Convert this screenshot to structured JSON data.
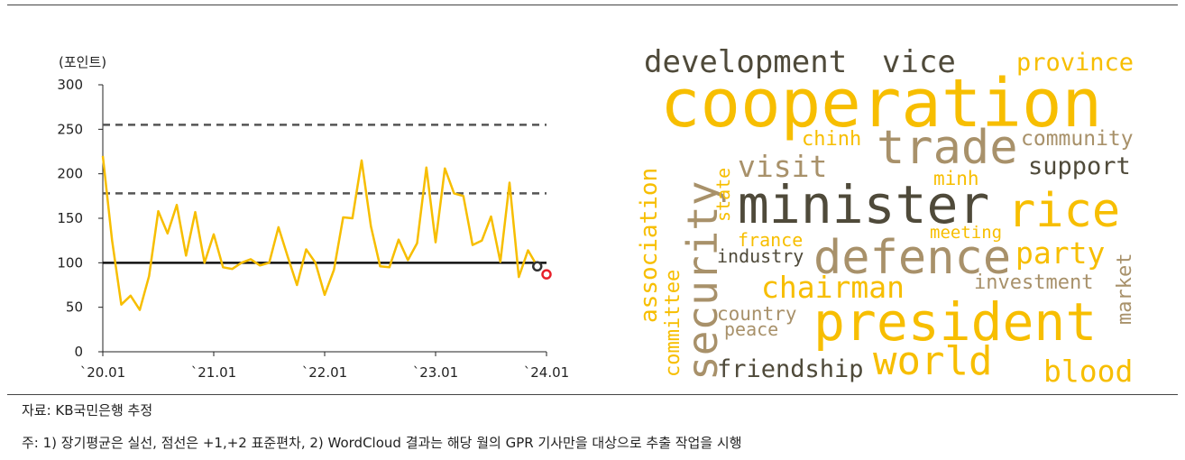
{
  "source": "자료: KB국민은행 추정",
  "footnote": "주: 1) 장기평균은 실선, 점선은 +1,+2 표준편차, 2) WordCloud 결과는 해당 월의 GPR 기사만을 대상으로 추출 작업을 시행",
  "chart_data": {
    "type": "line",
    "ylabel": "(포인트)",
    "xlabel": "",
    "ylim": [
      0,
      300
    ],
    "yticks": [
      0,
      50,
      100,
      150,
      200,
      250,
      300
    ],
    "xtick_labels": [
      "`20.01",
      "`21.01",
      "`22.01",
      "`23.01",
      "`24.01"
    ],
    "x_start": "2020-01",
    "x_end": "2024-01",
    "series": [
      {
        "values": [
          220,
          125,
          53,
          63,
          47,
          85,
          158,
          133,
          165,
          108,
          157,
          100,
          132,
          95,
          93,
          100,
          104,
          97,
          100,
          140,
          107,
          75,
          115,
          100,
          64,
          92,
          151,
          150,
          215,
          141,
          96,
          95,
          126,
          103,
          122,
          207,
          123,
          206,
          178,
          175,
          120,
          125,
          152,
          101,
          190,
          84,
          114,
          96
        ],
        "color": "#F7BE00",
        "marker_last": "#333333"
      }
    ],
    "reference_lines": [
      {
        "value": 100,
        "style": "solid",
        "color": "#111111"
      },
      {
        "value": 178,
        "style": "dashed",
        "color": "#555555"
      },
      {
        "value": 255,
        "style": "dashed",
        "color": "#555555"
      }
    ],
    "extra_point": {
      "x": "2024-01",
      "value": 87,
      "color": "#E8212B"
    }
  },
  "wordcloud": [
    {
      "text": "development",
      "color": "#4F4A3A"
    },
    {
      "text": "vice",
      "color": "#4F4A3A"
    },
    {
      "text": "province",
      "color": "#F7BE00"
    },
    {
      "text": "cooperation",
      "color": "#F7BE00"
    },
    {
      "text": "trade",
      "color": "#A8916A"
    },
    {
      "text": "chinh",
      "color": "#F7BE00"
    },
    {
      "text": "community",
      "color": "#A8916A"
    },
    {
      "text": "visit",
      "color": "#A8916A"
    },
    {
      "text": "support",
      "color": "#4F4A3A"
    },
    {
      "text": "minh",
      "color": "#F7BE00"
    },
    {
      "text": "minister",
      "color": "#4F4A3A"
    },
    {
      "text": "rice",
      "color": "#F7BE00"
    },
    {
      "text": "france",
      "color": "#F7BE00"
    },
    {
      "text": "meeting",
      "color": "#F7BE00"
    },
    {
      "text": "industry",
      "color": "#4F4A3A"
    },
    {
      "text": "defence",
      "color": "#A8916A"
    },
    {
      "text": "party",
      "color": "#F7BE00"
    },
    {
      "text": "chairman",
      "color": "#F7BE00"
    },
    {
      "text": "investment",
      "color": "#A8916A"
    },
    {
      "text": "country",
      "color": "#A8916A"
    },
    {
      "text": "peace",
      "color": "#A8916A"
    },
    {
      "text": "president",
      "color": "#F7BE00"
    },
    {
      "text": "world",
      "color": "#F7BE00"
    },
    {
      "text": "friendship",
      "color": "#4F4A3A"
    },
    {
      "text": "blood",
      "color": "#F7BE00"
    },
    {
      "text": "association",
      "color": "#F7BE00"
    },
    {
      "text": "committee",
      "color": "#F7BE00"
    },
    {
      "text": "security",
      "color": "#A8916A"
    },
    {
      "text": "state",
      "color": "#F7BE00"
    },
    {
      "text": "market",
      "color": "#A8916A"
    }
  ]
}
